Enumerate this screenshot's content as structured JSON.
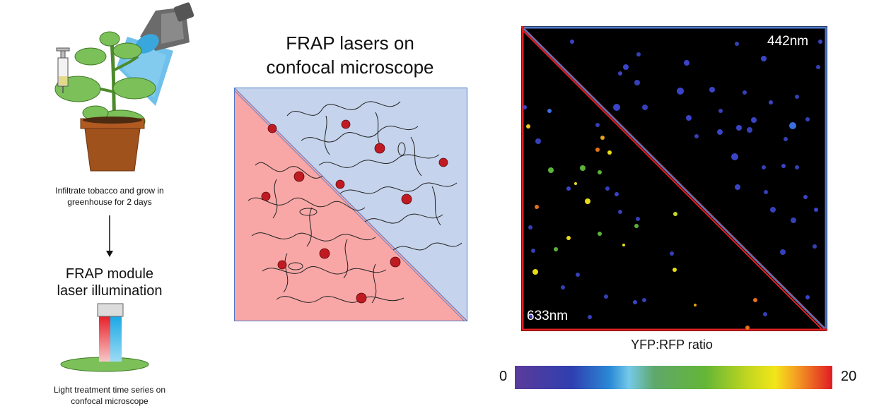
{
  "left": {
    "infiltrate_caption_line1": "Infiltrate tobacco and grow in",
    "infiltrate_caption_line2": "greenhouse  for 2 days",
    "frap_module_line1": "FRAP module",
    "frap_module_line2": "laser illumination",
    "light_treatment_line1": "Light treatment time series on",
    "light_treatment_line2": "confocal microscope"
  },
  "middle": {
    "title_line1": "FRAP lasers on",
    "title_line2": "confocal microscope"
  },
  "right": {
    "label_top_right": "442nm",
    "label_bottom_left": "633nm",
    "ratio_title": "YFP:RFP ratio",
    "scale_min": "0",
    "scale_max": "20"
  },
  "colors": {
    "blue_region": "#c5d3ec",
    "red_region": "#f8a7a6",
    "blue_border": "#4f79c7",
    "red_border": "#e02020",
    "cell_dot": "#c01a22",
    "plant_leaf": "#7cc05a",
    "pot": "#a0521d"
  }
}
